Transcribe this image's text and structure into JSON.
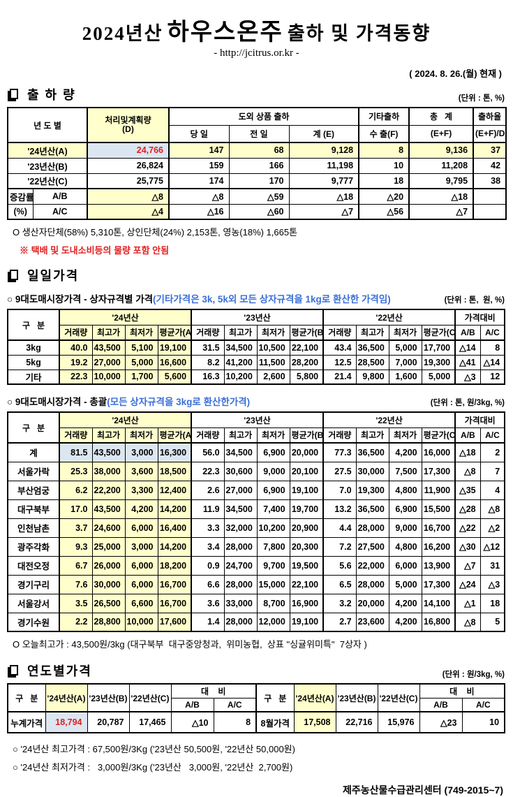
{
  "title": {
    "year": "2024년산",
    "product": "하우스온주",
    "suffix": "출하 및 가격동향",
    "url": "- http://jcitrus.or.kr -",
    "as_of": "( 2024. 8. 26.(월) 현재 )"
  },
  "colors": {
    "highlight_yellow": "#FFFFCC",
    "highlight_lavender": "#DCE6F1",
    "red_text": "#E02020",
    "blue_text": "#3A6FD8"
  },
  "shipment": {
    "title": "출 하 량",
    "unit": "(단위 : 톤, %)",
    "h": {
      "year_col": "년 도 별",
      "plan1": "처리및계획량",
      "plan2": "(D)",
      "out_group": "도외 상품 출하",
      "today": "당 일",
      "prev": "전 일",
      "sum": "계 (E)",
      "etc1": "기타출하",
      "etc2": "수 출(F)",
      "tot1": "총   계",
      "tot2": "(E+F)",
      "rate1": "출하율",
      "rate2": "(E+F)/D"
    },
    "rows": [
      {
        "label": "'24년산(A)",
        "cells": [
          "24,766",
          "147",
          "68",
          "9,128",
          "8",
          "9,136",
          "37"
        ]
      },
      {
        "label": "'23년산(B)",
        "cells": [
          "26,824",
          "159",
          "166",
          "11,198",
          "10",
          "11,208",
          "42"
        ]
      },
      {
        "label": "'22년산(C)",
        "cells": [
          "25,775",
          "174",
          "170",
          "9,777",
          "18",
          "9,795",
          "38"
        ]
      }
    ],
    "change": {
      "top": "증감률",
      "bottom": "(%)",
      "rows": [
        {
          "label": "A/B",
          "cells": [
            "△8",
            "△8",
            "△59",
            "△18",
            "△20",
            "△18",
            ""
          ]
        },
        {
          "label": "A/C",
          "cells": [
            "△4",
            "△16",
            "△60",
            "△7",
            "△56",
            "△7",
            ""
          ]
        }
      ]
    },
    "note1": "O 생산자단체(58%) 5,310톤, 상인단체(24%) 2,153톤, 영농(18%) 1,665톤",
    "note2": "※ 택배 및 도내소비등의 물량 포함 안됨"
  },
  "daily": {
    "title": "일일가격",
    "bybox": {
      "subtitle": "○ 9대도매시장가격 - 상자규격별 가격",
      "subtitle_note": "(기타가격은 3k, 5k외 모든 상자규격을 1kg로 환산한 가격임)",
      "unit": "(단위 : 톤,  원, %)",
      "h": {
        "group": "구   분",
        "y24": "'24년산",
        "y23": "'23년산",
        "y22": "'22년산",
        "cmp": "가격대비",
        "vol": "거래량",
        "high": "최고가",
        "low": "최저가",
        "avg_a": "평균가(A)",
        "avg_b": "평균가(B)",
        "avg_c": "평균가(C)",
        "ab": "A/B",
        "ac": "A/C"
      },
      "rows": [
        {
          "label": "3kg",
          "cells": [
            "40.0",
            "43,500",
            "5,100",
            "19,100",
            "31.5",
            "34,500",
            "10,500",
            "22,100",
            "43.4",
            "36,500",
            "5,000",
            "17,700",
            "△14",
            "8"
          ]
        },
        {
          "label": "5kg",
          "cells": [
            "19.2",
            "27,000",
            "5,000",
            "16,600",
            "8.2",
            "41,200",
            "11,500",
            "28,200",
            "12.5",
            "28,500",
            "7,000",
            "19,300",
            "△41",
            "△14"
          ]
        },
        {
          "label": "기타",
          "cells": [
            "22.3",
            "10,000",
            "1,700",
            "5,600",
            "16.3",
            "10,200",
            "2,600",
            "5,800",
            "21.4",
            "9,800",
            "1,600",
            "5,000",
            "△3",
            "12"
          ]
        }
      ]
    },
    "overall": {
      "subtitle": "○ 9대도매시장가격 - 총괄",
      "subtitle_note": "(모든 상자규격을 3kg로 환산한가격)",
      "unit": "(단위 : 톤, 원/3kg, %)",
      "h": {
        "group": "구   분",
        "y24": "'24년산",
        "y23": "'23년산",
        "y22": "'22년산",
        "cmp": "가격대비",
        "vol": "거래량",
        "high": "최고가",
        "low": "최저가",
        "avg_a": "평균가(A)",
        "avg_b": "평균가(B)",
        "avg_c": "평균가(C)",
        "ab": "A/B",
        "ac": "A/C"
      },
      "rows": [
        {
          "label": "계",
          "cells": [
            "81.5",
            "43,500",
            "3,000",
            "16,300",
            "56.0",
            "34,500",
            "6,900",
            "20,000",
            "77.3",
            "36,500",
            "4,200",
            "16,000",
            "△18",
            "2"
          ]
        },
        {
          "label": "서울가락",
          "cells": [
            "25.3",
            "38,000",
            "3,600",
            "18,500",
            "22.3",
            "30,600",
            "9,000",
            "20,100",
            "27.5",
            "30,000",
            "7,500",
            "17,300",
            "△8",
            "7"
          ]
        },
        {
          "label": "부산엄궁",
          "cells": [
            "6.2",
            "22,200",
            "3,300",
            "12,400",
            "2.6",
            "27,000",
            "6,900",
            "19,100",
            "7.0",
            "19,300",
            "4,800",
            "11,900",
            "△35",
            "4"
          ]
        },
        {
          "label": "대구북부",
          "cells": [
            "17.0",
            "43,500",
            "4,200",
            "14,200",
            "11.9",
            "34,500",
            "7,400",
            "19,700",
            "13.2",
            "36,500",
            "6,900",
            "15,500",
            "△28",
            "△8"
          ]
        },
        {
          "label": "인천남촌",
          "cells": [
            "3.7",
            "24,600",
            "6,000",
            "16,400",
            "3.3",
            "32,000",
            "10,200",
            "20,900",
            "4.4",
            "28,000",
            "9,000",
            "16,700",
            "△22",
            "△2"
          ]
        },
        {
          "label": "광주각화",
          "cells": [
            "9.3",
            "25,000",
            "3,000",
            "14,200",
            "3.4",
            "28,000",
            "7,800",
            "20,300",
            "7.2",
            "27,500",
            "4,800",
            "16,200",
            "△30",
            "△12"
          ]
        },
        {
          "label": "대전오정",
          "cells": [
            "6.7",
            "26,000",
            "6,000",
            "18,200",
            "0.9",
            "24,700",
            "9,700",
            "19,500",
            "5.6",
            "22,000",
            "6,000",
            "13,900",
            "△7",
            "31"
          ]
        },
        {
          "label": "경기구리",
          "cells": [
            "7.6",
            "30,000",
            "6,000",
            "16,700",
            "6.6",
            "28,000",
            "15,000",
            "22,100",
            "6.5",
            "28,000",
            "5,000",
            "17,300",
            "△24",
            "△3"
          ]
        },
        {
          "label": "서울강서",
          "cells": [
            "3.5",
            "26,500",
            "6,600",
            "16,700",
            "3.6",
            "33,000",
            "8,700",
            "16,900",
            "3.2",
            "20,000",
            "4,200",
            "14,100",
            "△1",
            "18"
          ]
        },
        {
          "label": "경기수원",
          "cells": [
            "2.2",
            "28,800",
            "10,000",
            "17,600",
            "1.4",
            "28,000",
            "12,000",
            "19,100",
            "2.7",
            "23,600",
            "4,200",
            "16,800",
            "△8",
            "5"
          ]
        }
      ],
      "note": "O 오늘최고가 : 43,500원/3kg (대구북부  대구중앙청과,  위미농협,  상표 \"싱귤위미특\"  7상자 )"
    }
  },
  "yearly": {
    "title": "연도별가격",
    "unit": "(단위 : 원/3kg, %)",
    "h": {
      "group": "구   분",
      "y24": "'24년산(A)",
      "y23": "'23년산(B)",
      "y22": "'22년산(C)",
      "cmp": "대    비",
      "ab": "A/B",
      "ac": "A/C"
    },
    "left": {
      "label": "누계가격",
      "cells": [
        "18,794",
        "20,787",
        "17,465",
        "△10",
        "8"
      ]
    },
    "right": {
      "label": "8월가격",
      "cells": [
        "17,508",
        "22,716",
        "15,976",
        "△23",
        "10"
      ]
    },
    "note1": "○ '24년산 최고가격 : 67,500원/3Kg ('23년산 50,500원, '22년산 50,000원)",
    "note2": "○ '24년산 최저가격 :   3,000원/3Kg ('23년산   3,000원, '22년산  2,700원)",
    "footer": "제주농산물수급관리센터 (749-2015~7)"
  }
}
